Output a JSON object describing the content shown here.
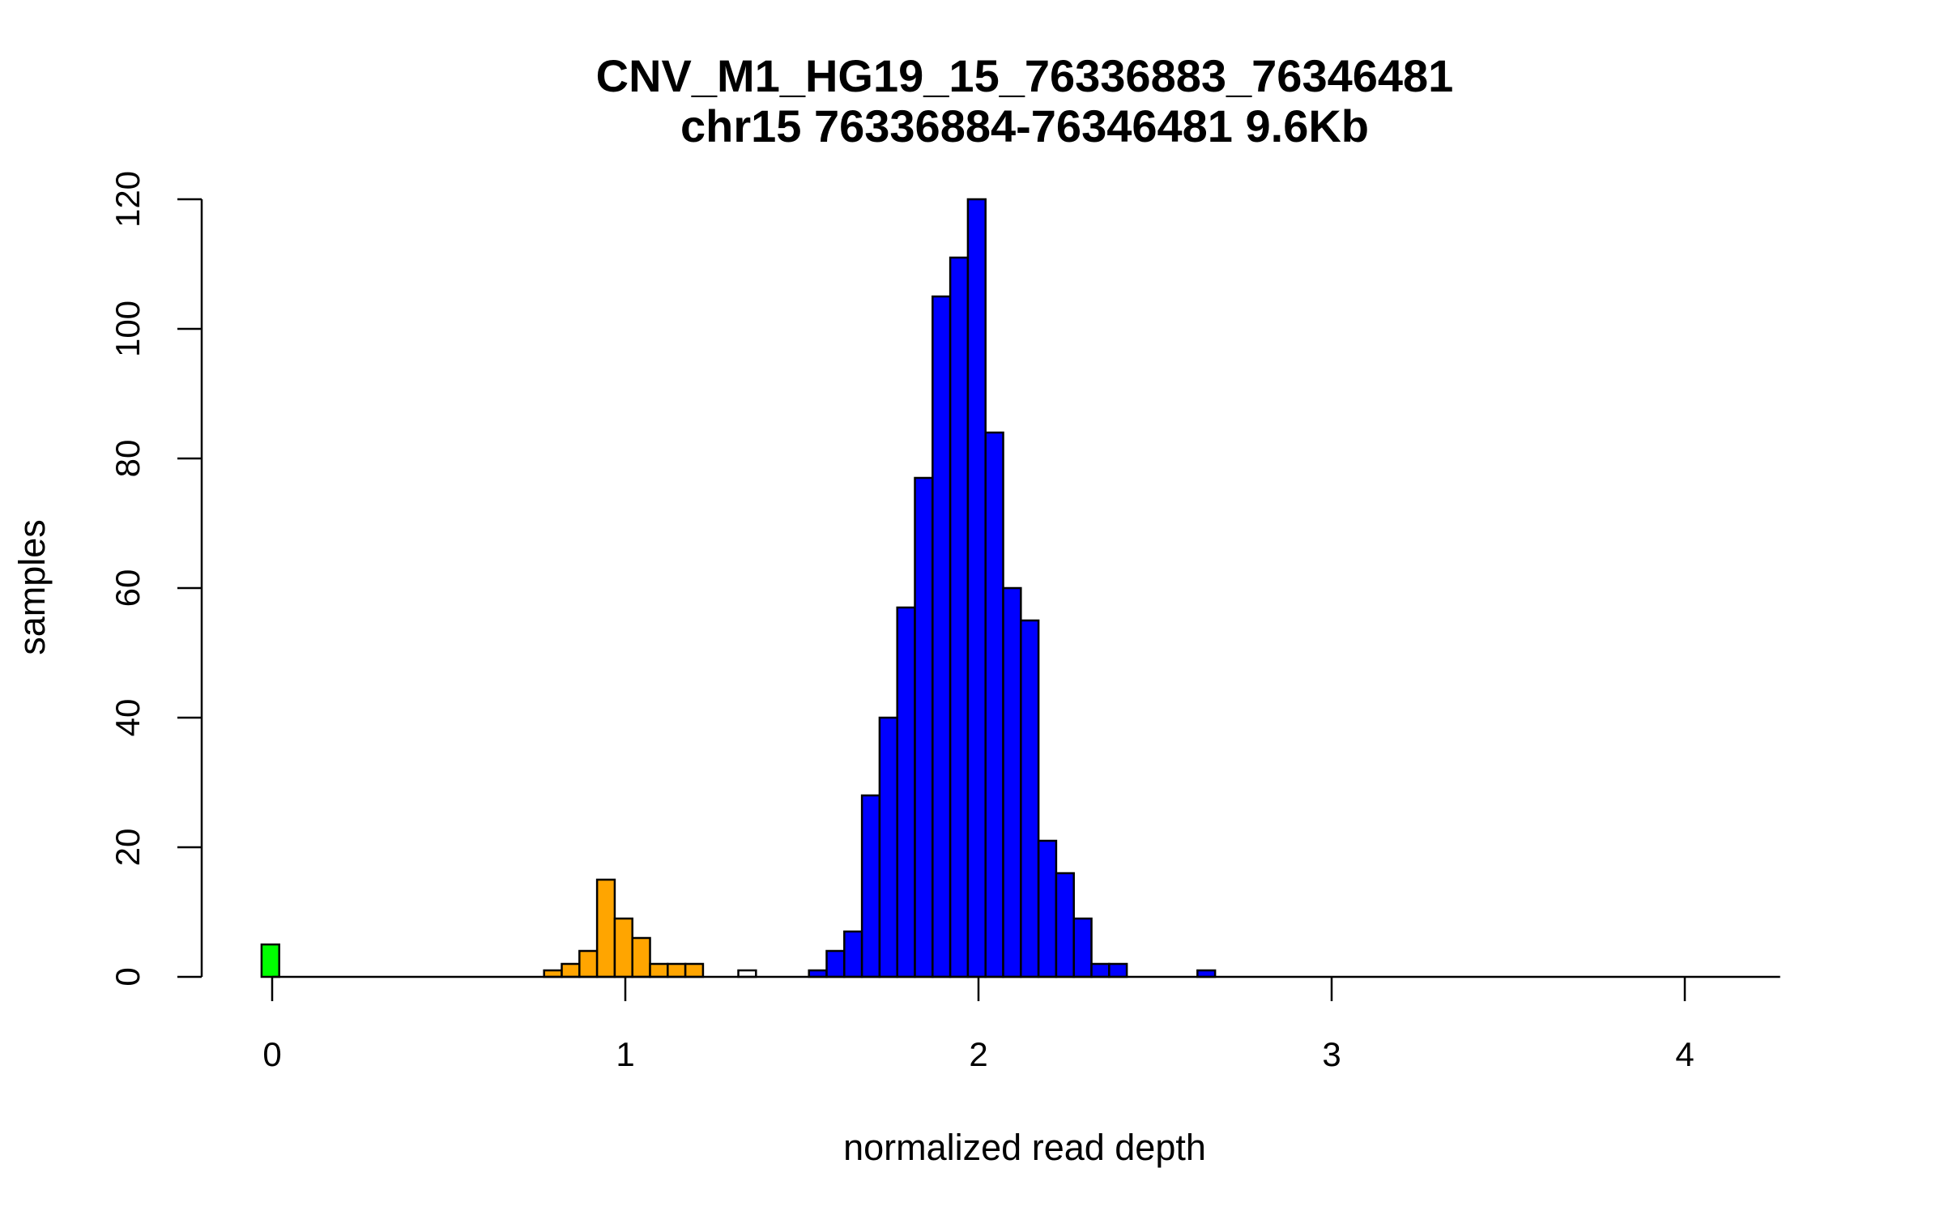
{
  "chart_data": {
    "type": "bar",
    "title": "CNV_M1_HG19_15_76336883_76346481",
    "subtitle": "chr15 76336884-76346481 9.6Kb",
    "xlabel": "normalized read depth",
    "ylabel": "samples",
    "xlim": [
      -0.2,
      4.3
    ],
    "ylim": [
      0,
      120
    ],
    "x_ticks": [
      0,
      1,
      2,
      3,
      4
    ],
    "x_tick_labels": [
      "0",
      "1",
      "2",
      "3",
      "4"
    ],
    "y_ticks": [
      0,
      20,
      40,
      60,
      80,
      100,
      120
    ],
    "y_tick_labels": [
      "0",
      "20",
      "40",
      "60",
      "80",
      "100",
      "120"
    ],
    "bin_width": 0.05,
    "grid": false,
    "legend": "none",
    "colors": {
      "copy_number_0": "#00ff00",
      "copy_number_1": "#ffa500",
      "copy_number_2": "#0000ff",
      "unassigned": "#ffffff",
      "outline": "#000000"
    },
    "bins": [
      {
        "x0": -0.03,
        "x1": 0.02,
        "count": 5,
        "group": "copy_number_0"
      },
      {
        "x0": 0.02,
        "x1": 0.07,
        "count": 0,
        "group": "copy_number_0"
      },
      {
        "x0": 0.07,
        "x1": 0.77,
        "count": 0,
        "group": "unassigned"
      },
      {
        "x0": 0.77,
        "x1": 0.82,
        "count": 1,
        "group": "copy_number_1"
      },
      {
        "x0": 0.82,
        "x1": 0.87,
        "count": 2,
        "group": "copy_number_1"
      },
      {
        "x0": 0.87,
        "x1": 0.92,
        "count": 4,
        "group": "copy_number_1"
      },
      {
        "x0": 0.92,
        "x1": 0.97,
        "count": 15,
        "group": "copy_number_1"
      },
      {
        "x0": 0.97,
        "x1": 1.02,
        "count": 9,
        "group": "copy_number_1"
      },
      {
        "x0": 1.02,
        "x1": 1.07,
        "count": 6,
        "group": "copy_number_1"
      },
      {
        "x0": 1.07,
        "x1": 1.12,
        "count": 2,
        "group": "copy_number_1"
      },
      {
        "x0": 1.12,
        "x1": 1.17,
        "count": 2,
        "group": "copy_number_1"
      },
      {
        "x0": 1.17,
        "x1": 1.22,
        "count": 2,
        "group": "copy_number_1"
      },
      {
        "x0": 1.22,
        "x1": 1.27,
        "count": 0,
        "group": "copy_number_1"
      },
      {
        "x0": 1.27,
        "x1": 1.32,
        "count": 0,
        "group": "unassigned"
      },
      {
        "x0": 1.32,
        "x1": 1.37,
        "count": 1,
        "group": "unassigned"
      },
      {
        "x0": 1.37,
        "x1": 1.42,
        "count": 0,
        "group": "unassigned"
      },
      {
        "x0": 1.42,
        "x1": 1.47,
        "count": 0,
        "group": "unassigned"
      },
      {
        "x0": 1.47,
        "x1": 1.52,
        "count": 0,
        "group": "copy_number_2"
      },
      {
        "x0": 1.52,
        "x1": 1.57,
        "count": 1,
        "group": "copy_number_2"
      },
      {
        "x0": 1.57,
        "x1": 1.62,
        "count": 4,
        "group": "copy_number_2"
      },
      {
        "x0": 1.62,
        "x1": 1.67,
        "count": 7,
        "group": "copy_number_2"
      },
      {
        "x0": 1.67,
        "x1": 1.72,
        "count": 28,
        "group": "copy_number_2"
      },
      {
        "x0": 1.72,
        "x1": 1.77,
        "count": 40,
        "group": "copy_number_2"
      },
      {
        "x0": 1.77,
        "x1": 1.82,
        "count": 57,
        "group": "copy_number_2"
      },
      {
        "x0": 1.82,
        "x1": 1.87,
        "count": 77,
        "group": "copy_number_2"
      },
      {
        "x0": 1.87,
        "x1": 1.92,
        "count": 105,
        "group": "copy_number_2"
      },
      {
        "x0": 1.92,
        "x1": 1.97,
        "count": 111,
        "group": "copy_number_2"
      },
      {
        "x0": 1.97,
        "x1": 2.02,
        "count": 120,
        "group": "copy_number_2"
      },
      {
        "x0": 2.02,
        "x1": 2.07,
        "count": 84,
        "group": "copy_number_2"
      },
      {
        "x0": 2.07,
        "x1": 2.12,
        "count": 60,
        "group": "copy_number_2"
      },
      {
        "x0": 2.12,
        "x1": 2.17,
        "count": 55,
        "group": "copy_number_2"
      },
      {
        "x0": 2.17,
        "x1": 2.22,
        "count": 21,
        "group": "copy_number_2"
      },
      {
        "x0": 2.22,
        "x1": 2.27,
        "count": 16,
        "group": "copy_number_2"
      },
      {
        "x0": 2.27,
        "x1": 2.32,
        "count": 9,
        "group": "copy_number_2"
      },
      {
        "x0": 2.32,
        "x1": 2.37,
        "count": 2,
        "group": "copy_number_2"
      },
      {
        "x0": 2.37,
        "x1": 2.42,
        "count": 2,
        "group": "copy_number_2"
      },
      {
        "x0": 2.42,
        "x1": 2.62,
        "count": 0,
        "group": "copy_number_2"
      },
      {
        "x0": 2.62,
        "x1": 2.67,
        "count": 1,
        "group": "copy_number_2"
      },
      {
        "x0": 2.67,
        "x1": 4.27,
        "count": 0,
        "group": "copy_number_2"
      }
    ]
  }
}
